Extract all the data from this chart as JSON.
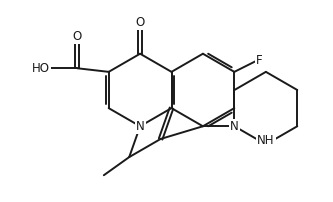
{
  "background_color": "#ffffff",
  "line_color": "#1a1a1a",
  "line_width": 1.4,
  "font_size": 8.5,
  "figsize": [
    3.33,
    2.02
  ],
  "dpi": 100,
  "xlim": [
    0,
    10
  ],
  "ylim": [
    0,
    6.06
  ]
}
